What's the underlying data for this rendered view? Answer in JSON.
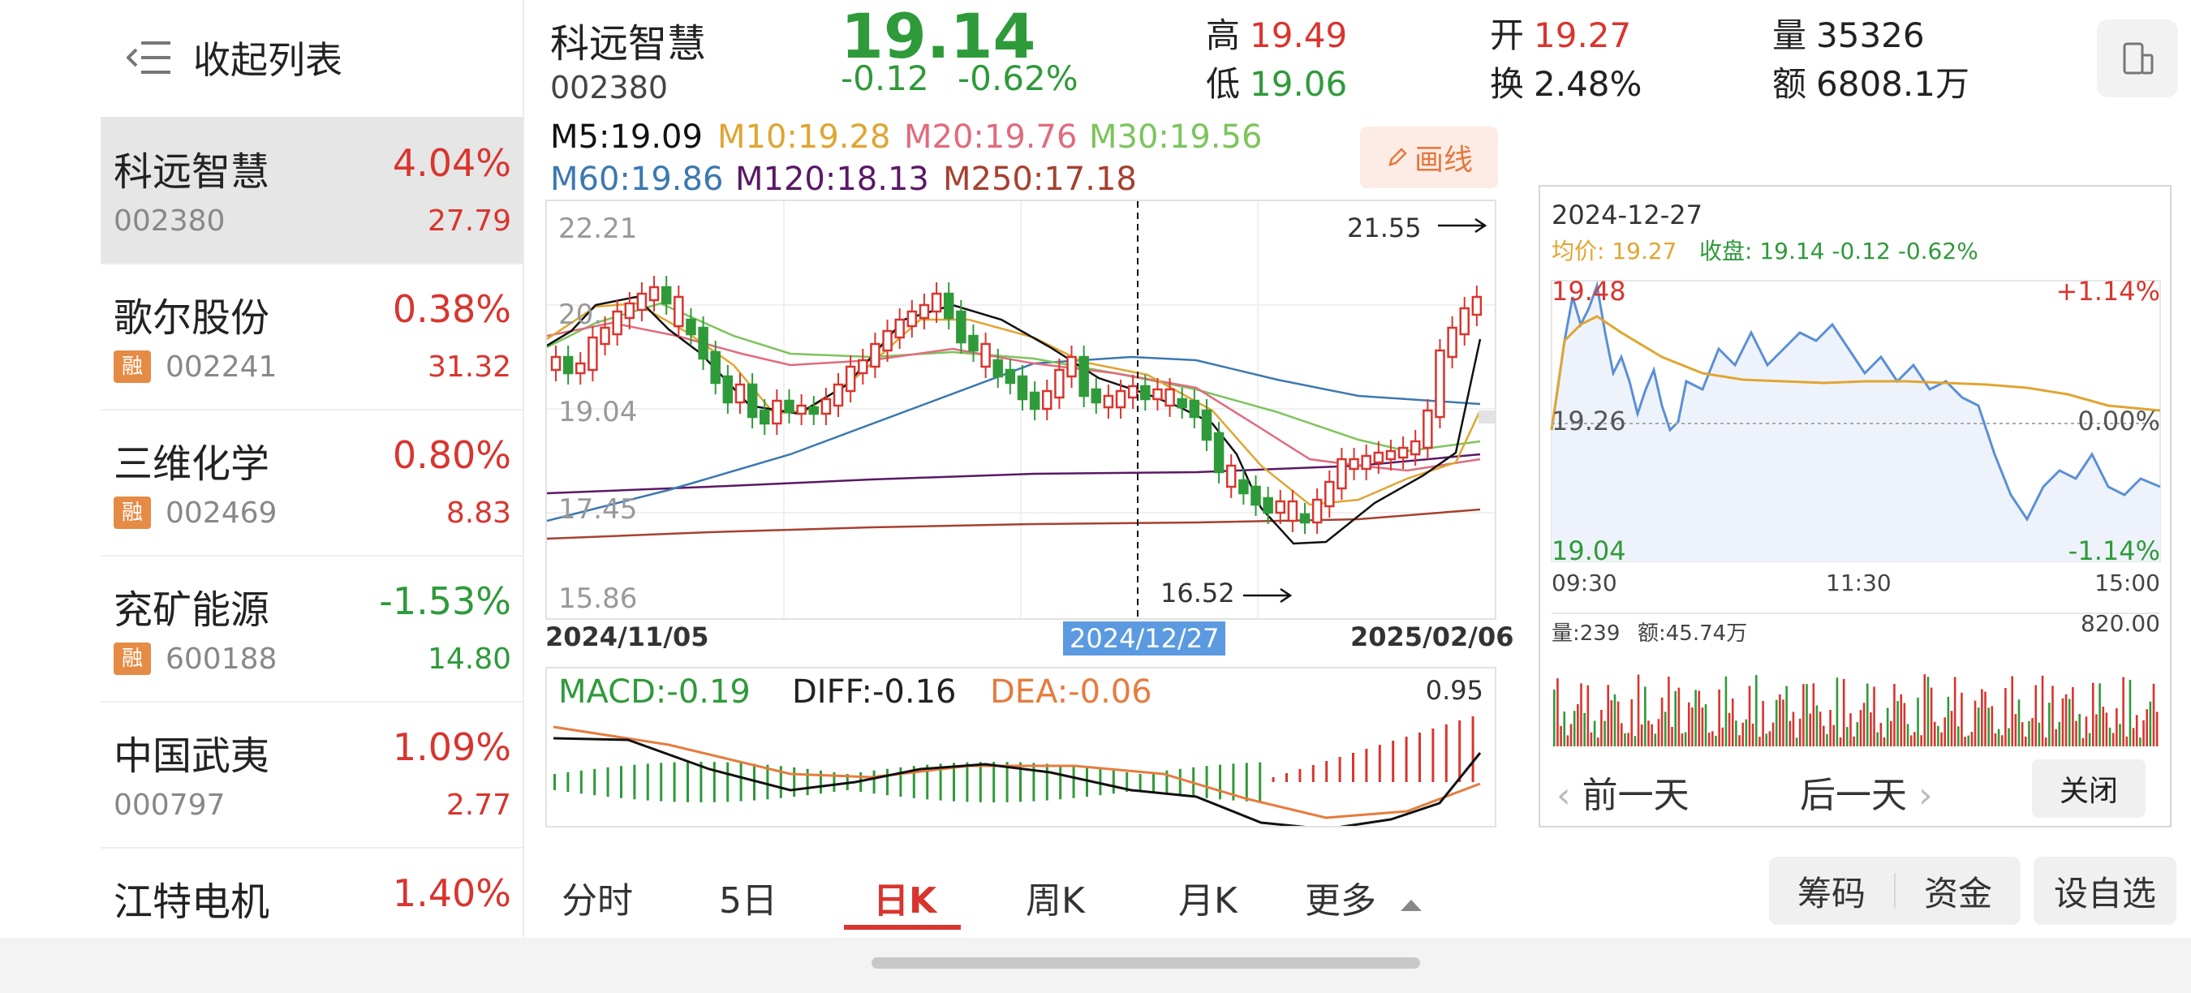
{
  "watchlist": {
    "collapse_label": "收起列表",
    "stocks": [
      {
        "name": "科远智慧",
        "code": "002380",
        "change_pct": "4.04%",
        "price": "27.79",
        "badge": "",
        "dir": "up"
      },
      {
        "name": "歌尔股份",
        "code": "002241",
        "change_pct": "0.38%",
        "price": "31.32",
        "badge": "融",
        "dir": "up"
      },
      {
        "name": "三维化学",
        "code": "002469",
        "change_pct": "0.80%",
        "price": "8.83",
        "badge": "融",
        "dir": "up"
      },
      {
        "name": "兖矿能源",
        "code": "600188",
        "change_pct": "-1.53%",
        "price": "14.80",
        "badge": "融",
        "dir": "down"
      },
      {
        "name": "中国武夷",
        "code": "000797",
        "change_pct": "1.09%",
        "price": "2.77",
        "badge": "",
        "dir": "up"
      },
      {
        "name": "江特电机",
        "code": "",
        "change_pct": "1.40%",
        "price": "",
        "badge": "",
        "dir": "up"
      }
    ]
  },
  "header": {
    "name": "科远智慧",
    "code": "002380",
    "price": "19.14",
    "change": "-0.12",
    "change_pct": "-0.62%",
    "high_label": "高",
    "high": "19.49",
    "low_label": "低",
    "low": "19.06",
    "open_label": "开",
    "open": "19.27",
    "turnover_label": "换",
    "turnover": "2.48%",
    "volume_label": "量",
    "volume": "35326",
    "amount_label": "额",
    "amount": "6808.1万"
  },
  "ma_legend": {
    "m5": "M5:19.09",
    "m10": "M10:19.28",
    "m20": "M20:19.76",
    "m30": "M30:19.56",
    "m60": "M60:19.86",
    "m120": "M120:18.13",
    "m250": "M250:17.18"
  },
  "draw_button": "画线",
  "kchart": {
    "y_ticks": [
      "22.21",
      "20.",
      "19.04",
      "17.45",
      "15.86"
    ],
    "x_start": "2024/11/05",
    "x_selected": "2024/12/27",
    "x_end": "2025/02/06",
    "max_label": "21.55",
    "min_label": "16.52"
  },
  "macd": {
    "macd": "MACD:-0.19",
    "diff": "DIFF:-0.16",
    "dea": "DEA:-0.06",
    "max": "0.95"
  },
  "tabs": [
    "分时",
    "5日",
    "日K",
    "周K",
    "月K",
    "更多"
  ],
  "intraday": {
    "date": "2024-12-27",
    "avg_label": "均价: 19.27",
    "close_label": "收盘: 19.14 -0.12 -0.62%",
    "y_top": "19.48",
    "y_mid": "19.26",
    "y_bottom": "19.04",
    "pct_top": "+1.14%",
    "pct_mid": "0.00%",
    "pct_bottom": "-1.14%",
    "t_start": "09:30",
    "t_mid": "11:30",
    "t_end": "15:00",
    "vol_label": "量:239",
    "amt_label": "额:45.74万",
    "vol_max": "820.00",
    "prev_day": "前一天",
    "next_day": "后一天",
    "close_btn": "关闭"
  },
  "bottom_buttons": {
    "chips": "筹码",
    "funds": "资金",
    "watch": "设自选"
  },
  "colors": {
    "up": "#d8352f",
    "down": "#2f9a3a",
    "m5": "#111111",
    "m10": "#e0a532",
    "m20": "#e06b7e",
    "m30": "#7cc45c",
    "m60": "#3b78b0",
    "m120": "#5a1866",
    "m250": "#a5412f"
  }
}
